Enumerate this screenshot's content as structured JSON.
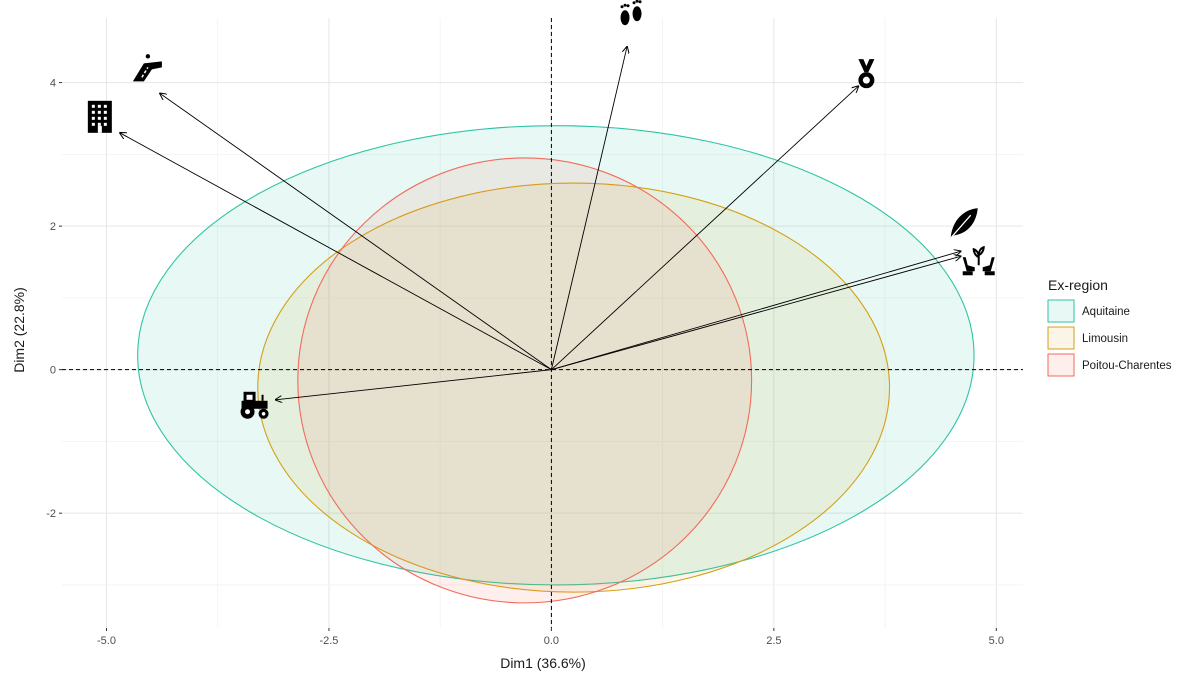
{
  "chart_data": {
    "type": "scatter",
    "subtype": "pca-biplot",
    "title": "",
    "xlabel": "Dim1 (36.6%)",
    "ylabel": "Dim2 (22.8%)",
    "xlim": [
      -5.5,
      5.3
    ],
    "ylim": [
      -3.6,
      4.9
    ],
    "x_ticks": [
      -5.0,
      -2.5,
      0.0,
      2.5,
      5.0
    ],
    "x_tick_labels": [
      "-5.0",
      "-2.5",
      "0.0",
      "2.5",
      "5.0"
    ],
    "y_ticks": [
      -2,
      0,
      2,
      4
    ],
    "y_tick_labels": [
      "-2",
      "0",
      "2",
      "4"
    ],
    "grid": true,
    "reference_lines": {
      "x": 0,
      "y": 0,
      "style": "dashed"
    },
    "legend": {
      "title": "Ex-region",
      "position": "right",
      "entries": [
        {
          "label": "Aquitaine",
          "color": "#2EC4A6",
          "fill": "#E8F7F2"
        },
        {
          "label": "Limousin",
          "color": "#D4A017",
          "fill": "#F7EED5"
        },
        {
          "label": "Poitou-Charentes",
          "color": "#F26B5B",
          "fill": "#FBE3DC"
        }
      ]
    },
    "ellipses": [
      {
        "group": "Aquitaine",
        "cx": 0.05,
        "cy": 0.2,
        "rx": 4.7,
        "ry": 3.2
      },
      {
        "group": "Limousin",
        "cx": 0.25,
        "cy": -0.25,
        "rx": 3.55,
        "ry": 2.85
      },
      {
        "group": "Poitou-Charentes",
        "cx": -0.3,
        "cy": -0.15,
        "rx": 2.55,
        "ry": 3.1
      }
    ],
    "vectors": [
      {
        "icon": "footprints-icon",
        "x": 0.85,
        "y": 4.5
      },
      {
        "icon": "road-icon",
        "x": -4.4,
        "y": 3.85
      },
      {
        "icon": "building-icon",
        "x": -4.85,
        "y": 3.3
      },
      {
        "icon": "medal-icon",
        "x": 3.45,
        "y": 3.95
      },
      {
        "icon": "leaf-icon",
        "x": 4.6,
        "y": 1.65
      },
      {
        "icon": "hands-plant-icon",
        "x": 4.6,
        "y": 1.58
      },
      {
        "icon": "tractor-icon",
        "x": -3.1,
        "y": -0.42
      }
    ]
  }
}
